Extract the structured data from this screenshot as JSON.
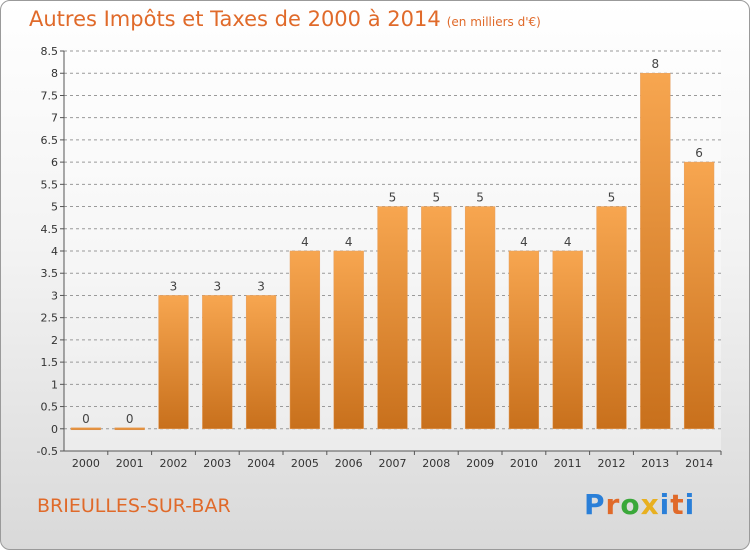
{
  "header": {
    "title": "Autres Impôts et Taxes de 2000 à 2014",
    "subtitle": "(en milliers d'€)"
  },
  "footer": {
    "city": "BRIEULLES-SUR-BAR",
    "brand": [
      "P",
      "r",
      "o",
      "x",
      "i",
      "t",
      "i"
    ]
  },
  "colors": {
    "bar_top": "#f7a650",
    "bar_bottom": "#c8701c",
    "title": "#e06a2a",
    "grid": "#9a9a9a"
  },
  "chart_data": {
    "type": "bar",
    "title": "Autres Impôts et Taxes de 2000 à 2014",
    "categories": [
      "2000",
      "2001",
      "2002",
      "2003",
      "2004",
      "2005",
      "2006",
      "2007",
      "2008",
      "2009",
      "2010",
      "2011",
      "2012",
      "2013",
      "2014"
    ],
    "values": [
      0,
      0,
      3,
      3,
      3,
      4,
      4,
      5,
      5,
      5,
      4,
      4,
      5,
      8,
      6
    ],
    "data_labels": [
      "0",
      "0",
      "3",
      "3",
      "3",
      "4",
      "4",
      "5",
      "5",
      "5",
      "4",
      "4",
      "5",
      "8",
      "6"
    ],
    "ylim": [
      -0.5,
      8.5
    ],
    "yticks": [
      -0.5,
      0,
      0.5,
      1,
      1.5,
      2,
      2.5,
      3,
      3.5,
      4,
      4.5,
      5,
      5.5,
      6,
      6.5,
      7,
      7.5,
      8,
      8.5
    ],
    "ytick_labels": [
      "-0.5",
      "0",
      "0.5",
      "1",
      "1.5",
      "2",
      "2.5",
      "3",
      "3.5",
      "4",
      "4.5",
      "5",
      "5.5",
      "6",
      "6.5",
      "7",
      "7.5",
      "8",
      "8.5"
    ],
    "grid": true
  }
}
